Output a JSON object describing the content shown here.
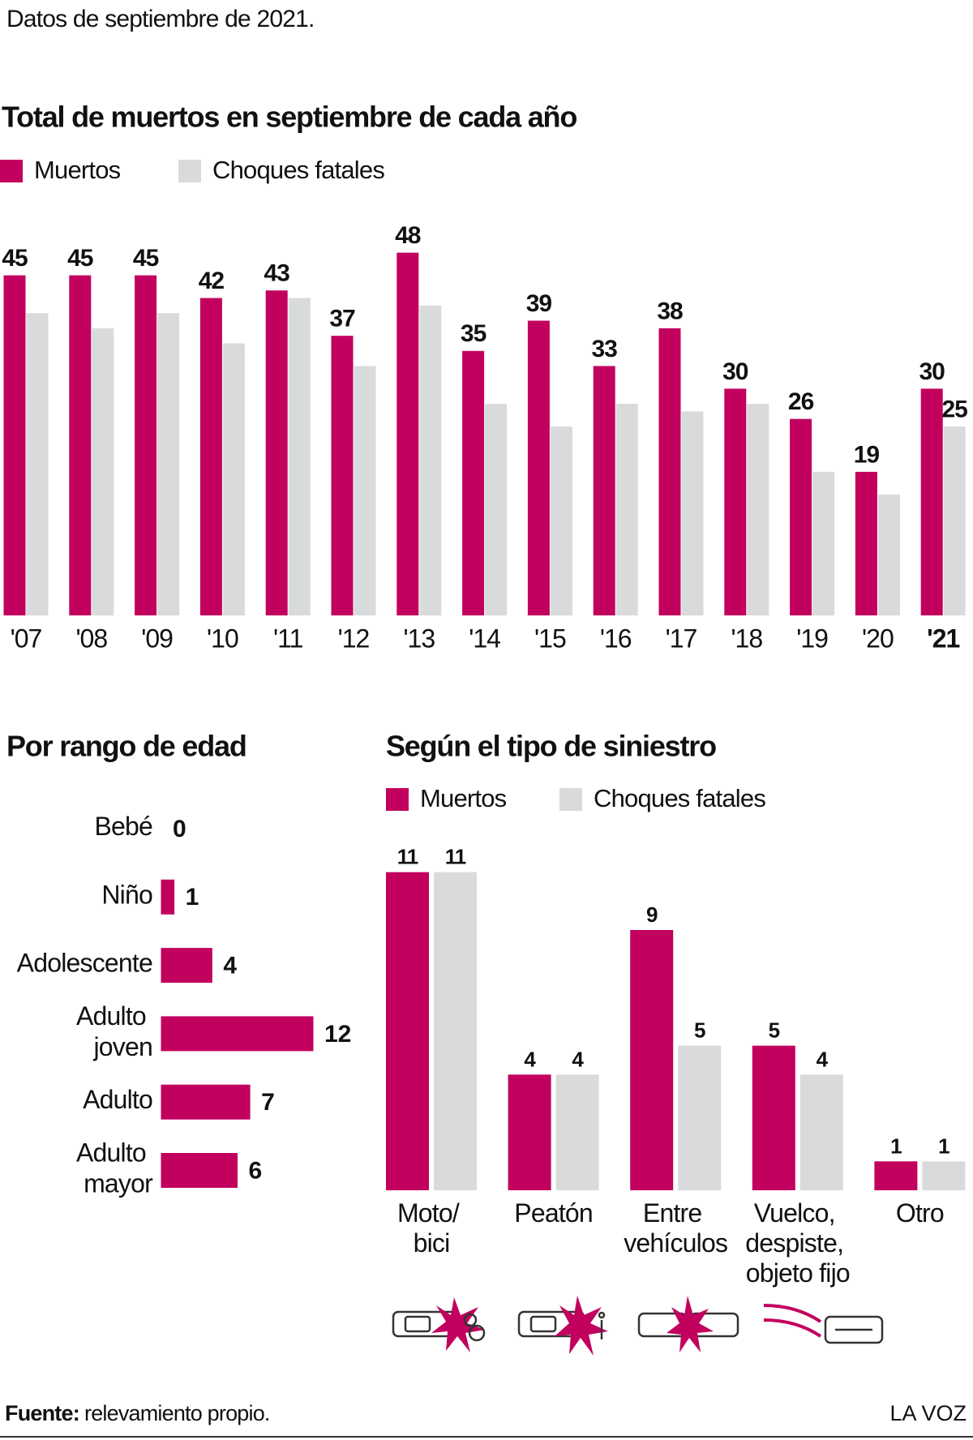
{
  "subtitle": "Datos de septiembre de 2021.",
  "chart_data": [
    {
      "type": "bar",
      "title": "Total de muertos en septiembre de cada año",
      "categories": [
        "'07",
        "'08",
        "'09",
        "'10",
        "'11",
        "'12",
        "'13",
        "'14",
        "'15",
        "'16",
        "'17",
        "'18",
        "'19",
        "'20",
        "'21"
      ],
      "series": [
        {
          "name": "Muertos",
          "color": "#c2005e",
          "values": [
            45,
            45,
            45,
            42,
            43,
            37,
            48,
            35,
            39,
            33,
            38,
            30,
            26,
            19,
            30
          ]
        },
        {
          "name": "Choques fatales",
          "color": "#d9dadc",
          "values": [
            40,
            38,
            40,
            36,
            42,
            33,
            41,
            28,
            25,
            28,
            27,
            28,
            19,
            16,
            25
          ],
          "value_labels": [
            null,
            null,
            null,
            null,
            null,
            null,
            null,
            null,
            null,
            null,
            null,
            null,
            null,
            null,
            "25"
          ]
        }
      ],
      "ylim": [
        0,
        50
      ]
    },
    {
      "type": "barh",
      "title": "Por rango de edad",
      "categories": [
        [
          "Bebé"
        ],
        [
          "Niño"
        ],
        [
          "Adolescente"
        ],
        [
          "Adulto",
          "joven"
        ],
        [
          "Adulto"
        ],
        [
          "Adulto",
          "mayor"
        ]
      ],
      "values": [
        0,
        1,
        4,
        12,
        7,
        6
      ],
      "color": "#c2005e",
      "xlim": [
        0,
        12
      ]
    },
    {
      "type": "bar",
      "title": "Según el tipo de siniestro",
      "categories": [
        [
          "Moto/",
          "bici"
        ],
        [
          "Peatón"
        ],
        [
          "Entre",
          "vehículos"
        ],
        [
          "Vuelco,",
          "despiste,",
          "objeto fijo"
        ],
        [
          "Otro"
        ]
      ],
      "series": [
        {
          "name": "Muertos",
          "color": "#c2005e",
          "values": [
            11,
            4,
            9,
            5,
            1
          ]
        },
        {
          "name": "Choques fatales",
          "color": "#d9dadc",
          "values": [
            11,
            4,
            5,
            4,
            1
          ]
        }
      ],
      "ylim": [
        0,
        12
      ]
    }
  ],
  "footer": {
    "source_label": "Fuente:",
    "source": "relevamiento propio.",
    "brand": "LA VOZ"
  }
}
